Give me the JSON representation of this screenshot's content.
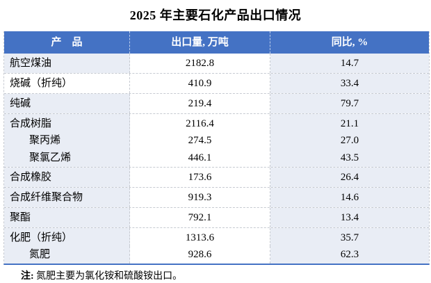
{
  "title": "2025 年主要石化产品出口情况",
  "colors": {
    "header_bg": "#4472C4",
    "band_light_blue": "#E9EDF5",
    "cell_white": "#FFFFFF",
    "grid_border": "#C6CAD1",
    "bottom_rule": "#4472C4",
    "header_text": "#FFFFFF",
    "body_text": "#000000"
  },
  "table": {
    "headers": {
      "product": "产　品",
      "volume": "出口量, 万吨",
      "yoy": "同比, %"
    },
    "rows": [
      {
        "product": "航空煤油",
        "volume": "2182.8",
        "yoy": "14.7"
      },
      {
        "product": "烧碱（折纯）",
        "volume": "410.9",
        "yoy": "33.4"
      },
      {
        "product": "纯碱",
        "volume": "219.4",
        "yoy": "79.7"
      },
      {
        "product": "合成树脂",
        "volume": "2116.4",
        "yoy": "21.1"
      },
      {
        "product": "聚丙烯",
        "volume": "274.5",
        "yoy": "27.0"
      },
      {
        "product": "聚氯乙烯",
        "volume": "446.1",
        "yoy": "43.5"
      },
      {
        "product": "合成橡胶",
        "volume": "173.6",
        "yoy": "26.4"
      },
      {
        "product": "合成纤维聚合物",
        "volume": "919.3",
        "yoy": "14.6"
      },
      {
        "product": "聚酯",
        "volume": "792.1",
        "yoy": "13.4"
      },
      {
        "product": "化肥（折纯）",
        "volume": "1313.6",
        "yoy": "35.7"
      },
      {
        "product": "氮肥",
        "volume": "928.6",
        "yoy": "62.3"
      }
    ]
  },
  "note": {
    "prefix": "注:",
    "text": "氮肥主要为氯化铵和硫酸铵出口。"
  }
}
